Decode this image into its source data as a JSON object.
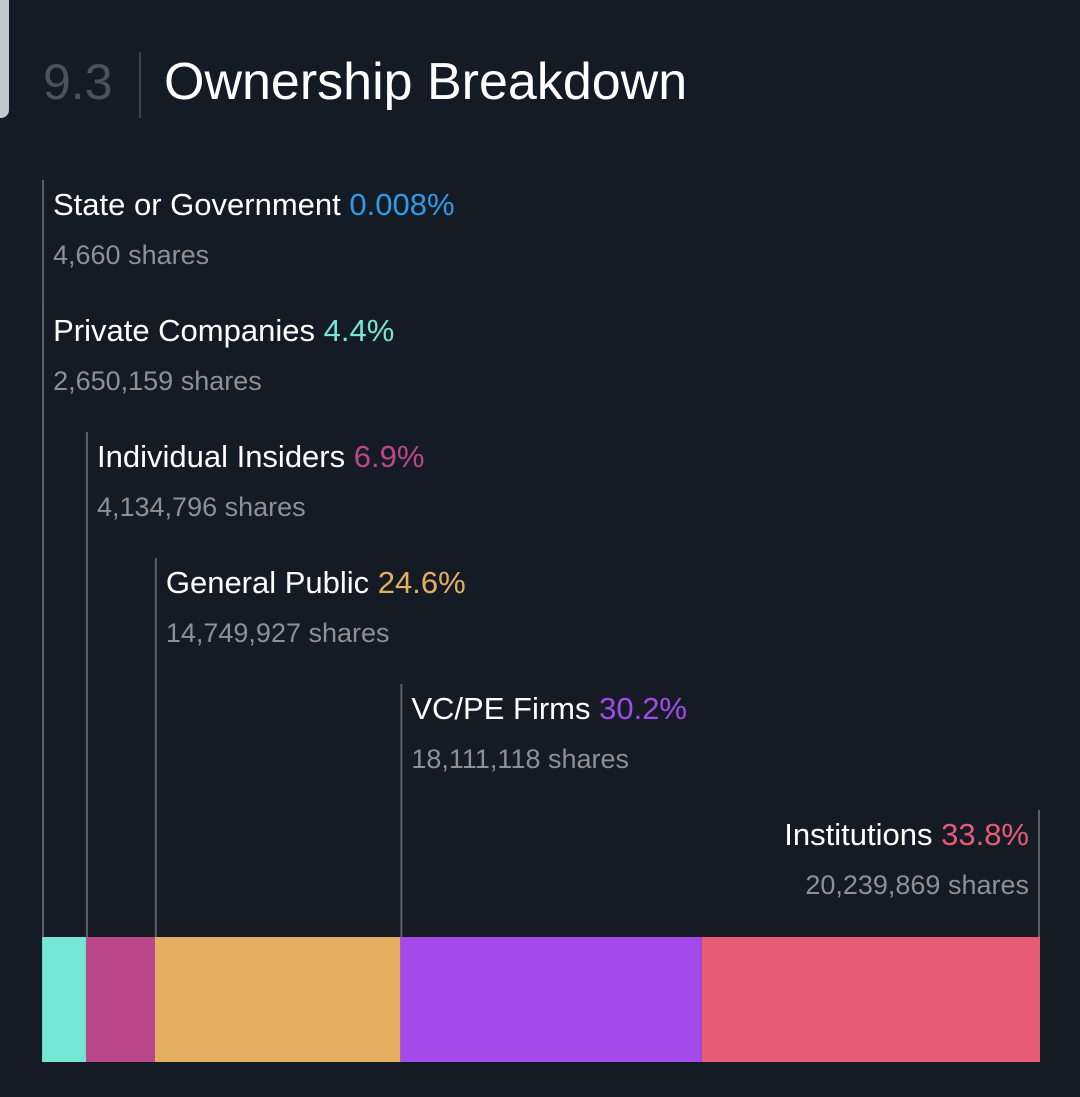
{
  "section": {
    "number": "9.3",
    "title": "Ownership Breakdown"
  },
  "chart_data": {
    "type": "bar",
    "orientation": "horizontal-stacked",
    "title": "Ownership Breakdown",
    "total_percent": 100,
    "series": [
      {
        "name": "State or Government",
        "percent_label": "0.008%",
        "value": 0.008,
        "shares_label": "4,660 shares",
        "shares": 4660,
        "color": "#2d9be6"
      },
      {
        "name": "Private Companies",
        "percent_label": "4.4%",
        "value": 4.4,
        "shares_label": "2,650,159 shares",
        "shares": 2650159,
        "color": "#74e6d6"
      },
      {
        "name": "Individual Insiders",
        "percent_label": "6.9%",
        "value": 6.9,
        "shares_label": "4,134,796 shares",
        "shares": 4134796,
        "color": "#b9478a"
      },
      {
        "name": "General Public",
        "percent_label": "24.6%",
        "value": 24.6,
        "shares_label": "14,749,927 shares",
        "shares": 14749927,
        "color": "#e5af62"
      },
      {
        "name": "VC/PE Firms",
        "percent_label": "30.2%",
        "value": 30.2,
        "shares_label": "18,111,118 shares",
        "shares": 18111118,
        "color": "#a54aea"
      },
      {
        "name": "Institutions",
        "percent_label": "33.8%",
        "value": 33.8,
        "shares_label": "20,239,869 shares",
        "shares": 20239869,
        "color": "#e85b74"
      }
    ],
    "label_text_color": "#ffffff",
    "shares_text_color": "#8b919a",
    "leader_line_color": "#5a6069"
  }
}
